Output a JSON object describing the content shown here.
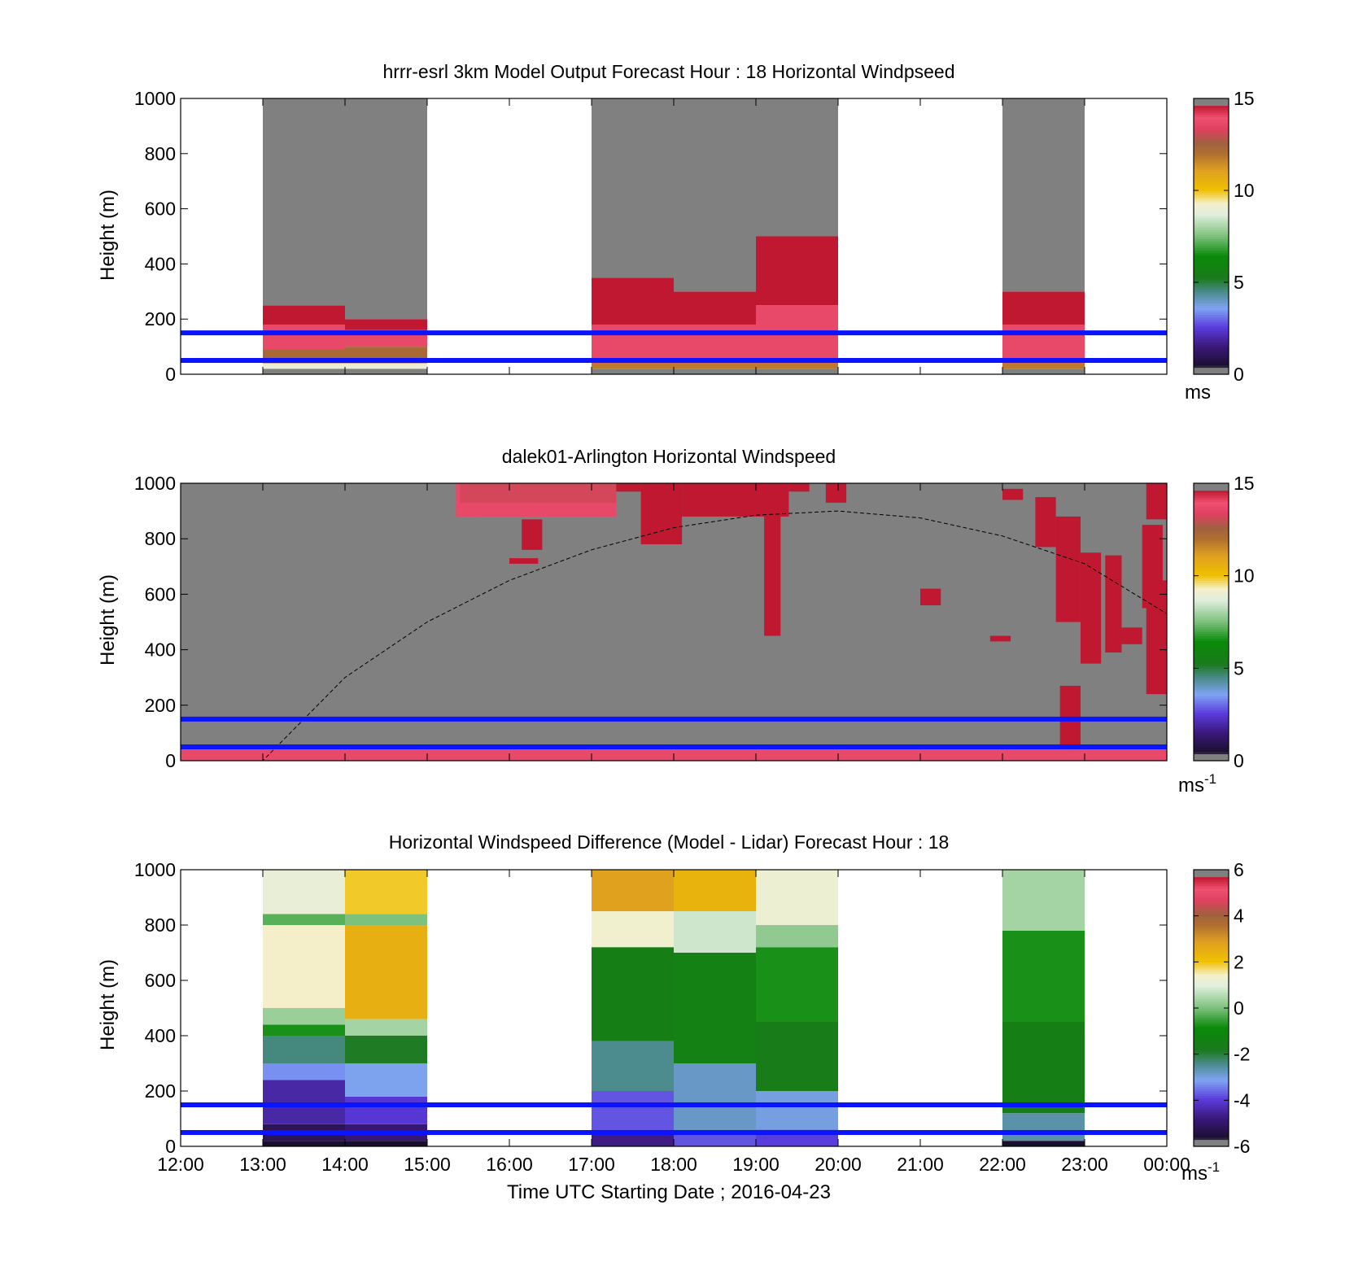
{
  "figure": {
    "xaxis_label": "Time UTC  Starting Date ; 2016-04-23",
    "time_ticks": [
      "12:00",
      "13:00",
      "14:00",
      "15:00",
      "16:00",
      "17:00",
      "18:00",
      "19:00",
      "20:00",
      "21:00",
      "22:00",
      "23:00",
      "00:00"
    ]
  },
  "chart_data": [
    {
      "type": "heatmap",
      "title": "hrrr-esrl 3km Model Output   Forecast Hour : 18 Horizontal Windpseed",
      "ylabel": "Height (m)",
      "ylim": [
        0,
        1000
      ],
      "yticks": [
        "0",
        "200",
        "400",
        "600",
        "800",
        "1000"
      ],
      "colorbar": {
        "range": [
          0,
          15
        ],
        "ticks": [
          "0",
          "5",
          "10",
          "15"
        ],
        "unit": "ms"
      },
      "reference_lines_m": [
        50,
        150
      ],
      "columns": [
        {
          "start": "13:00",
          "end": "14:00",
          "layers": [
            {
              "from": 0,
              "to": 20,
              "v": 0
            },
            {
              "from": 20,
              "to": 40,
              "v": 9
            },
            {
              "from": 40,
              "to": 90,
              "v": 12.5
            },
            {
              "from": 90,
              "to": 180,
              "v": 14
            },
            {
              "from": 180,
              "to": 250,
              "v": 15
            },
            {
              "from": 250,
              "to": 1000,
              "v": 0
            }
          ]
        },
        {
          "start": "14:00",
          "end": "15:00",
          "layers": [
            {
              "from": 0,
              "to": 20,
              "v": 0
            },
            {
              "from": 20,
              "to": 40,
              "v": 9
            },
            {
              "from": 40,
              "to": 100,
              "v": 12.5
            },
            {
              "from": 100,
              "to": 160,
              "v": 14
            },
            {
              "from": 160,
              "to": 200,
              "v": 15
            },
            {
              "from": 200,
              "to": 1000,
              "v": 0
            }
          ]
        },
        {
          "start": "17:00",
          "end": "18:00",
          "layers": [
            {
              "from": 0,
              "to": 20,
              "v": 0
            },
            {
              "from": 20,
              "to": 40,
              "v": 12
            },
            {
              "from": 40,
              "to": 180,
              "v": 14
            },
            {
              "from": 180,
              "to": 350,
              "v": 15
            },
            {
              "from": 350,
              "to": 1000,
              "v": 0
            }
          ]
        },
        {
          "start": "18:00",
          "end": "19:00",
          "layers": [
            {
              "from": 0,
              "to": 20,
              "v": 0
            },
            {
              "from": 20,
              "to": 40,
              "v": 12
            },
            {
              "from": 40,
              "to": 180,
              "v": 14
            },
            {
              "from": 180,
              "to": 300,
              "v": 15
            },
            {
              "from": 300,
              "to": 1000,
              "v": 0
            }
          ]
        },
        {
          "start": "19:00",
          "end": "20:00",
          "layers": [
            {
              "from": 0,
              "to": 20,
              "v": 0
            },
            {
              "from": 20,
              "to": 40,
              "v": 12
            },
            {
              "from": 40,
              "to": 250,
              "v": 14
            },
            {
              "from": 250,
              "to": 500,
              "v": 15
            },
            {
              "from": 500,
              "to": 1000,
              "v": 0
            }
          ]
        },
        {
          "start": "22:00",
          "end": "23:00",
          "layers": [
            {
              "from": 0,
              "to": 20,
              "v": 0
            },
            {
              "from": 20,
              "to": 40,
              "v": 12
            },
            {
              "from": 40,
              "to": 180,
              "v": 14
            },
            {
              "from": 180,
              "to": 300,
              "v": 15
            },
            {
              "from": 300,
              "to": 1000,
              "v": 0
            }
          ]
        }
      ]
    },
    {
      "type": "heatmap",
      "title": "dalek01-Arlington  Horizontal Windspeed",
      "ylabel": "Height (m)",
      "ylim": [
        0,
        1000
      ],
      "yticks": [
        "0",
        "200",
        "400",
        "600",
        "800",
        "1000"
      ],
      "colorbar": {
        "range": [
          0,
          15
        ],
        "ticks": [
          "0",
          "5",
          "10",
          "15"
        ],
        "unit": "ms",
        "unit_exponent": "-1"
      },
      "reference_lines_m": [
        50,
        150
      ],
      "background_value": 0,
      "boundary_layer_curve": [
        [
          12.5,
          0
        ],
        [
          13.0,
          0
        ],
        [
          14.0,
          300
        ],
        [
          15.0,
          500
        ],
        [
          16.0,
          650
        ],
        [
          17.0,
          760
        ],
        [
          18.0,
          840
        ],
        [
          19.0,
          885
        ],
        [
          20.0,
          900
        ],
        [
          21.0,
          875
        ],
        [
          22.0,
          810
        ],
        [
          23.0,
          710
        ],
        [
          24.0,
          530
        ]
      ],
      "wind_patches": [
        {
          "t0": 15.35,
          "t1": 15.6,
          "h0": 880,
          "h1": 1000,
          "v": 14
        },
        {
          "t0": 15.6,
          "t1": 17.3,
          "h0": 880,
          "h1": 1000,
          "v": 14
        },
        {
          "t0": 15.4,
          "t1": 17.3,
          "h0": 930,
          "h1": 1000,
          "v": 13.5
        },
        {
          "t0": 16.15,
          "t1": 16.4,
          "h0": 760,
          "h1": 870,
          "v": 15
        },
        {
          "t0": 16.0,
          "t1": 16.35,
          "h0": 710,
          "h1": 730,
          "v": 15
        },
        {
          "t0": 17.3,
          "t1": 17.6,
          "h0": 970,
          "h1": 1000,
          "v": 15
        },
        {
          "t0": 17.6,
          "t1": 18.1,
          "h0": 780,
          "h1": 1000,
          "v": 15
        },
        {
          "t0": 18.1,
          "t1": 19.4,
          "h0": 880,
          "h1": 1000,
          "v": 15
        },
        {
          "t0": 19.1,
          "t1": 19.3,
          "h0": 450,
          "h1": 980,
          "v": 15
        },
        {
          "t0": 19.4,
          "t1": 19.65,
          "h0": 970,
          "h1": 1000,
          "v": 15
        },
        {
          "t0": 19.85,
          "t1": 20.1,
          "h0": 930,
          "h1": 1000,
          "v": 15
        },
        {
          "t0": 22.0,
          "t1": 22.25,
          "h0": 940,
          "h1": 980,
          "v": 15
        },
        {
          "t0": 22.4,
          "t1": 22.65,
          "h0": 770,
          "h1": 950,
          "v": 15
        },
        {
          "t0": 22.65,
          "t1": 22.95,
          "h0": 500,
          "h1": 880,
          "v": 15
        },
        {
          "t0": 22.95,
          "t1": 23.2,
          "h0": 350,
          "h1": 750,
          "v": 15
        },
        {
          "t0": 23.25,
          "t1": 23.45,
          "h0": 390,
          "h1": 740,
          "v": 15
        },
        {
          "t0": 23.45,
          "t1": 23.7,
          "h0": 420,
          "h1": 480,
          "v": 15
        },
        {
          "t0": 23.7,
          "t1": 23.95,
          "h0": 550,
          "h1": 850,
          "v": 15
        },
        {
          "t0": 23.75,
          "t1": 24.0,
          "h0": 870,
          "h1": 1000,
          "v": 15
        },
        {
          "t0": 23.75,
          "t1": 24.0,
          "h0": 240,
          "h1": 650,
          "v": 15
        },
        {
          "t0": 21.0,
          "t1": 21.25,
          "h0": 560,
          "h1": 620,
          "v": 15
        },
        {
          "t0": 21.85,
          "t1": 22.1,
          "h0": 430,
          "h1": 450,
          "v": 15
        },
        {
          "t0": 22.7,
          "t1": 22.95,
          "h0": 30,
          "h1": 270,
          "v": 15
        }
      ],
      "surface_band": {
        "from": 0,
        "to": 50,
        "v": 14
      }
    },
    {
      "type": "heatmap",
      "title": "Horizontal Windspeed Difference (Model - Lidar) Forecast Hour : 18",
      "ylabel": "Height (m)",
      "ylim": [
        0,
        1000
      ],
      "yticks": [
        "0",
        "200",
        "400",
        "600",
        "800",
        "1000"
      ],
      "colorbar": {
        "range": [
          -6,
          6
        ],
        "ticks": [
          "-6",
          "-4",
          "-2",
          "0",
          "2",
          "4",
          "6"
        ],
        "unit": "ms",
        "unit_exponent": "-1"
      },
      "reference_lines_m": [
        50,
        150
      ],
      "columns": [
        {
          "start": "13:00",
          "end": "14:00",
          "layers": [
            {
              "from": 0,
              "to": 20,
              "v": -6
            },
            {
              "from": 20,
              "to": 80,
              "v": -5.5
            },
            {
              "from": 80,
              "to": 240,
              "v": -4.7
            },
            {
              "from": 240,
              "to": 300,
              "v": -3.5
            },
            {
              "from": 300,
              "to": 400,
              "v": -2.5
            },
            {
              "from": 400,
              "to": 440,
              "v": -0.8
            },
            {
              "from": 440,
              "to": 500,
              "v": 0.3
            },
            {
              "from": 500,
              "to": 800,
              "v": 1.5
            },
            {
              "from": 800,
              "to": 840,
              "v": -0.3
            },
            {
              "from": 840,
              "to": 1000,
              "v": 1.2
            }
          ]
        },
        {
          "start": "14:00",
          "end": "15:00",
          "layers": [
            {
              "from": 0,
              "to": 20,
              "v": -6
            },
            {
              "from": 20,
              "to": 80,
              "v": -5.2
            },
            {
              "from": 80,
              "to": 180,
              "v": -4.3
            },
            {
              "from": 180,
              "to": 300,
              "v": -3.3
            },
            {
              "from": 300,
              "to": 400,
              "v": -2
            },
            {
              "from": 400,
              "to": 460,
              "v": 0.4
            },
            {
              "from": 460,
              "to": 800,
              "v": 2.6
            },
            {
              "from": 800,
              "to": 840,
              "v": 0
            },
            {
              "from": 840,
              "to": 1000,
              "v": 2
            }
          ]
        },
        {
          "start": "17:00",
          "end": "18:00",
          "layers": [
            {
              "from": 0,
              "to": 50,
              "v": -5
            },
            {
              "from": 50,
              "to": 200,
              "v": -4
            },
            {
              "from": 200,
              "to": 380,
              "v": -2.6
            },
            {
              "from": 380,
              "to": 720,
              "v": -1.6
            },
            {
              "from": 720,
              "to": 850,
              "v": 1.4
            },
            {
              "from": 850,
              "to": 1000,
              "v": 3
            }
          ]
        },
        {
          "start": "18:00",
          "end": "19:00",
          "layers": [
            {
              "from": 0,
              "to": 50,
              "v": -4
            },
            {
              "from": 50,
              "to": 300,
              "v": -3
            },
            {
              "from": 300,
              "to": 700,
              "v": -1.5
            },
            {
              "from": 700,
              "to": 850,
              "v": 0.8
            },
            {
              "from": 850,
              "to": 1000,
              "v": 2.5
            }
          ]
        },
        {
          "start": "19:00",
          "end": "20:00",
          "layers": [
            {
              "from": 0,
              "to": 60,
              "v": -4.2
            },
            {
              "from": 60,
              "to": 200,
              "v": -3.2
            },
            {
              "from": 200,
              "to": 450,
              "v": -1.8
            },
            {
              "from": 450,
              "to": 720,
              "v": -0.8
            },
            {
              "from": 720,
              "to": 800,
              "v": 0.2
            },
            {
              "from": 800,
              "to": 1000,
              "v": 1.3
            }
          ]
        },
        {
          "start": "22:00",
          "end": "23:00",
          "layers": [
            {
              "from": 0,
              "to": 20,
              "v": -6
            },
            {
              "from": 20,
              "to": 120,
              "v": -2.8
            },
            {
              "from": 120,
              "to": 450,
              "v": -1.6
            },
            {
              "from": 450,
              "to": 780,
              "v": -0.8
            },
            {
              "from": 780,
              "to": 1000,
              "v": 0.4
            }
          ]
        }
      ]
    }
  ]
}
